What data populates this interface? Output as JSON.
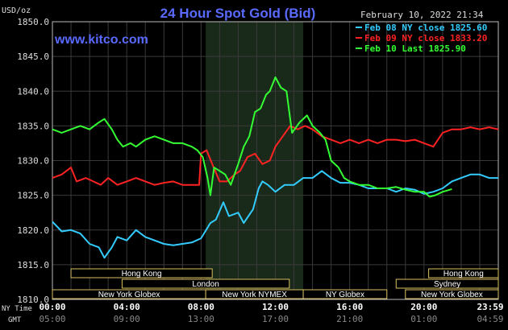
{
  "header": {
    "title": "24 Hour Spot Gold (Bid)",
    "website": "www.kitco.com",
    "datetime": "February 10, 2022 21:34",
    "unit": "USD/oz"
  },
  "legend": [
    {
      "label": "Feb 08 NY close 1825.60",
      "color": "#33ccff"
    },
    {
      "label": "Feb 09 NY close 1833.20",
      "color": "#ff2222"
    },
    {
      "label": "Feb 10 Last 1825.90",
      "color": "#33ff33"
    }
  ],
  "sessions": [
    {
      "row": 0,
      "label": "Hong Kong",
      "start": 1.0,
      "end": 8.6
    },
    {
      "row": 0,
      "label": "Hong Kong",
      "start": 20.25,
      "end": 25.7
    },
    {
      "row": 1,
      "label": "London",
      "start": 3.75,
      "end": 12.75
    },
    {
      "row": 1,
      "label": "Sydney",
      "start": 18.5,
      "end": 24.7
    },
    {
      "row": 2,
      "label": "New York Globex",
      "start": 0.0,
      "end": 8.25
    },
    {
      "row": 2,
      "label": "New York NYMEX",
      "start": 8.25,
      "end": 13.5
    },
    {
      "row": 2,
      "label": "NY Globex",
      "start": 13.5,
      "end": 18.0
    },
    {
      "row": 2,
      "label": "New York Globex",
      "start": 19.0,
      "end": 24.0
    }
  ],
  "time_labels": {
    "row1_label": "NY Time",
    "row2_label": "GMT",
    "ny": [
      "00:00",
      "04:00",
      "08:00",
      "12:00",
      "16:00",
      "20:00",
      "23:59"
    ],
    "gmt": [
      "05:00",
      "09:00",
      "13:00",
      "17:00",
      "21:00",
      "01:00",
      "04:59"
    ]
  },
  "chart_data": {
    "type": "line",
    "title": "24 Hour Spot Gold (Bid)",
    "ylabel": "USD/oz",
    "xlabel": "NY Time",
    "x_range_hours": [
      0,
      24
    ],
    "ylim": [
      1810,
      1850
    ],
    "y_ticks": [
      "1810.0",
      "1815.0",
      "1820.0",
      "1825.0",
      "1830.0",
      "1835.0",
      "1840.0",
      "1845.0",
      "1850.0"
    ],
    "highlight_hours": [
      8.25,
      13.5
    ],
    "grid": true,
    "series": [
      {
        "name": "Feb 08 NY close 1825.60",
        "color": "#33ccff",
        "points": [
          [
            0,
            1821.2
          ],
          [
            0.5,
            1819.8
          ],
          [
            1.0,
            1820.0
          ],
          [
            1.5,
            1819.5
          ],
          [
            2.0,
            1818.0
          ],
          [
            2.5,
            1817.5
          ],
          [
            2.8,
            1816.0
          ],
          [
            3.2,
            1817.5
          ],
          [
            3.5,
            1819.0
          ],
          [
            4.0,
            1818.5
          ],
          [
            4.5,
            1820.0
          ],
          [
            5.0,
            1819.0
          ],
          [
            5.5,
            1818.5
          ],
          [
            6.0,
            1818.0
          ],
          [
            6.5,
            1817.8
          ],
          [
            7.0,
            1818.0
          ],
          [
            7.5,
            1818.2
          ],
          [
            8.0,
            1818.8
          ],
          [
            8.5,
            1821.0
          ],
          [
            8.8,
            1821.5
          ],
          [
            9.2,
            1824.0
          ],
          [
            9.5,
            1822.0
          ],
          [
            10.0,
            1822.5
          ],
          [
            10.3,
            1821.0
          ],
          [
            10.8,
            1823.0
          ],
          [
            11.1,
            1826.0
          ],
          [
            11.3,
            1827.0
          ],
          [
            11.6,
            1826.5
          ],
          [
            12.0,
            1825.5
          ],
          [
            12.5,
            1826.5
          ],
          [
            13.0,
            1826.5
          ],
          [
            13.5,
            1827.5
          ],
          [
            14.0,
            1827.5
          ],
          [
            14.5,
            1828.5
          ],
          [
            15.0,
            1827.5
          ],
          [
            15.5,
            1826.8
          ],
          [
            16.0,
            1826.8
          ],
          [
            16.5,
            1826.5
          ],
          [
            17.0,
            1826.0
          ],
          [
            17.5,
            1826.0
          ],
          [
            18.0,
            1826.0
          ],
          [
            18.5,
            1825.5
          ],
          [
            19.0,
            1826.0
          ],
          [
            19.5,
            1825.8
          ],
          [
            20.0,
            1825.2
          ],
          [
            20.5,
            1825.5
          ],
          [
            21.0,
            1826.0
          ],
          [
            21.5,
            1827.0
          ],
          [
            22.0,
            1827.5
          ],
          [
            22.5,
            1828.0
          ],
          [
            23.0,
            1828.0
          ],
          [
            23.5,
            1827.5
          ],
          [
            24.0,
            1827.5
          ]
        ]
      },
      {
        "name": "Feb 09 NY close 1833.20",
        "color": "#ff2222",
        "points": [
          [
            0,
            1827.5
          ],
          [
            0.5,
            1828.0
          ],
          [
            1.0,
            1829.0
          ],
          [
            1.3,
            1827.0
          ],
          [
            1.8,
            1827.5
          ],
          [
            2.2,
            1827.0
          ],
          [
            2.6,
            1826.5
          ],
          [
            3.0,
            1827.5
          ],
          [
            3.5,
            1826.5
          ],
          [
            4.0,
            1827.0
          ],
          [
            4.5,
            1827.5
          ],
          [
            5.0,
            1827.0
          ],
          [
            5.5,
            1826.5
          ],
          [
            6.0,
            1826.8
          ],
          [
            6.5,
            1827.0
          ],
          [
            7.0,
            1826.5
          ],
          [
            7.5,
            1826.5
          ],
          [
            7.9,
            1826.5
          ],
          [
            8.0,
            1831.0
          ],
          [
            8.3,
            1831.5
          ],
          [
            8.6,
            1829.5
          ],
          [
            9.0,
            1827.0
          ],
          [
            9.4,
            1827.0
          ],
          [
            9.8,
            1828.0
          ],
          [
            10.1,
            1828.5
          ],
          [
            10.5,
            1830.5
          ],
          [
            10.9,
            1831.0
          ],
          [
            11.3,
            1829.5
          ],
          [
            11.7,
            1830.0
          ],
          [
            12.0,
            1832.0
          ],
          [
            12.4,
            1833.5
          ],
          [
            12.8,
            1835.0
          ],
          [
            13.2,
            1834.5
          ],
          [
            13.6,
            1835.0
          ],
          [
            14.0,
            1834.5
          ],
          [
            14.5,
            1833.5
          ],
          [
            15.0,
            1833.0
          ],
          [
            15.5,
            1832.5
          ],
          [
            16.0,
            1833.0
          ],
          [
            16.5,
            1832.5
          ],
          [
            17.0,
            1833.0
          ],
          [
            17.5,
            1832.5
          ],
          [
            18.0,
            1833.0
          ],
          [
            18.5,
            1833.0
          ],
          [
            19.0,
            1832.8
          ],
          [
            19.5,
            1833.0
          ],
          [
            20.0,
            1832.5
          ],
          [
            20.5,
            1832.0
          ],
          [
            21.0,
            1834.0
          ],
          [
            21.5,
            1834.5
          ],
          [
            22.0,
            1834.5
          ],
          [
            22.5,
            1834.8
          ],
          [
            23.0,
            1834.5
          ],
          [
            23.5,
            1834.8
          ],
          [
            24.0,
            1834.5
          ]
        ]
      },
      {
        "name": "Feb 10 Last 1825.90",
        "color": "#33ff33",
        "points": [
          [
            0,
            1834.5
          ],
          [
            0.5,
            1834.0
          ],
          [
            1.0,
            1834.5
          ],
          [
            1.5,
            1835.0
          ],
          [
            2.0,
            1834.5
          ],
          [
            2.5,
            1835.5
          ],
          [
            2.8,
            1836.0
          ],
          [
            3.2,
            1834.5
          ],
          [
            3.5,
            1833.0
          ],
          [
            3.8,
            1832.0
          ],
          [
            4.2,
            1832.5
          ],
          [
            4.5,
            1832.0
          ],
          [
            5.0,
            1833.0
          ],
          [
            5.5,
            1833.5
          ],
          [
            6.0,
            1833.0
          ],
          [
            6.5,
            1832.5
          ],
          [
            7.0,
            1832.5
          ],
          [
            7.5,
            1832.0
          ],
          [
            7.8,
            1831.5
          ],
          [
            8.1,
            1830.5
          ],
          [
            8.35,
            1827.5
          ],
          [
            8.5,
            1825.0
          ],
          [
            8.7,
            1829.0
          ],
          [
            9.0,
            1828.5
          ],
          [
            9.3,
            1828.0
          ],
          [
            9.6,
            1826.5
          ],
          [
            10.0,
            1829.5
          ],
          [
            10.3,
            1832.0
          ],
          [
            10.6,
            1833.5
          ],
          [
            10.9,
            1837.0
          ],
          [
            11.2,
            1837.5
          ],
          [
            11.5,
            1839.5
          ],
          [
            11.7,
            1840.0
          ],
          [
            12.0,
            1842.0
          ],
          [
            12.3,
            1840.5
          ],
          [
            12.6,
            1840.0
          ],
          [
            12.9,
            1834.0
          ],
          [
            13.3,
            1835.5
          ],
          [
            13.7,
            1836.5
          ],
          [
            14.0,
            1835.0
          ],
          [
            14.4,
            1834.0
          ],
          [
            14.7,
            1833.0
          ],
          [
            15.0,
            1830.0
          ],
          [
            15.4,
            1829.0
          ],
          [
            15.7,
            1827.5
          ],
          [
            16.0,
            1827.0
          ],
          [
            16.5,
            1826.5
          ],
          [
            17.0,
            1826.5
          ],
          [
            17.5,
            1826.0
          ],
          [
            18.0,
            1826.0
          ],
          [
            18.5,
            1826.2
          ],
          [
            19.0,
            1825.8
          ],
          [
            19.5,
            1825.5
          ],
          [
            20.0,
            1825.5
          ],
          [
            20.3,
            1824.8
          ],
          [
            20.6,
            1825.0
          ],
          [
            21.0,
            1825.5
          ],
          [
            21.5,
            1825.9
          ]
        ]
      }
    ]
  }
}
